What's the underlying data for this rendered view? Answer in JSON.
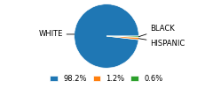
{
  "chart_data": {
    "type": "pie",
    "categories": [
      "WHITE",
      "HISPANIC",
      "BLACK"
    ],
    "values": [
      98.2,
      1.2,
      0.6
    ],
    "value_labels": [
      "98.2%",
      "1.2%",
      "0.6%"
    ],
    "legend": "lower center"
  }
}
